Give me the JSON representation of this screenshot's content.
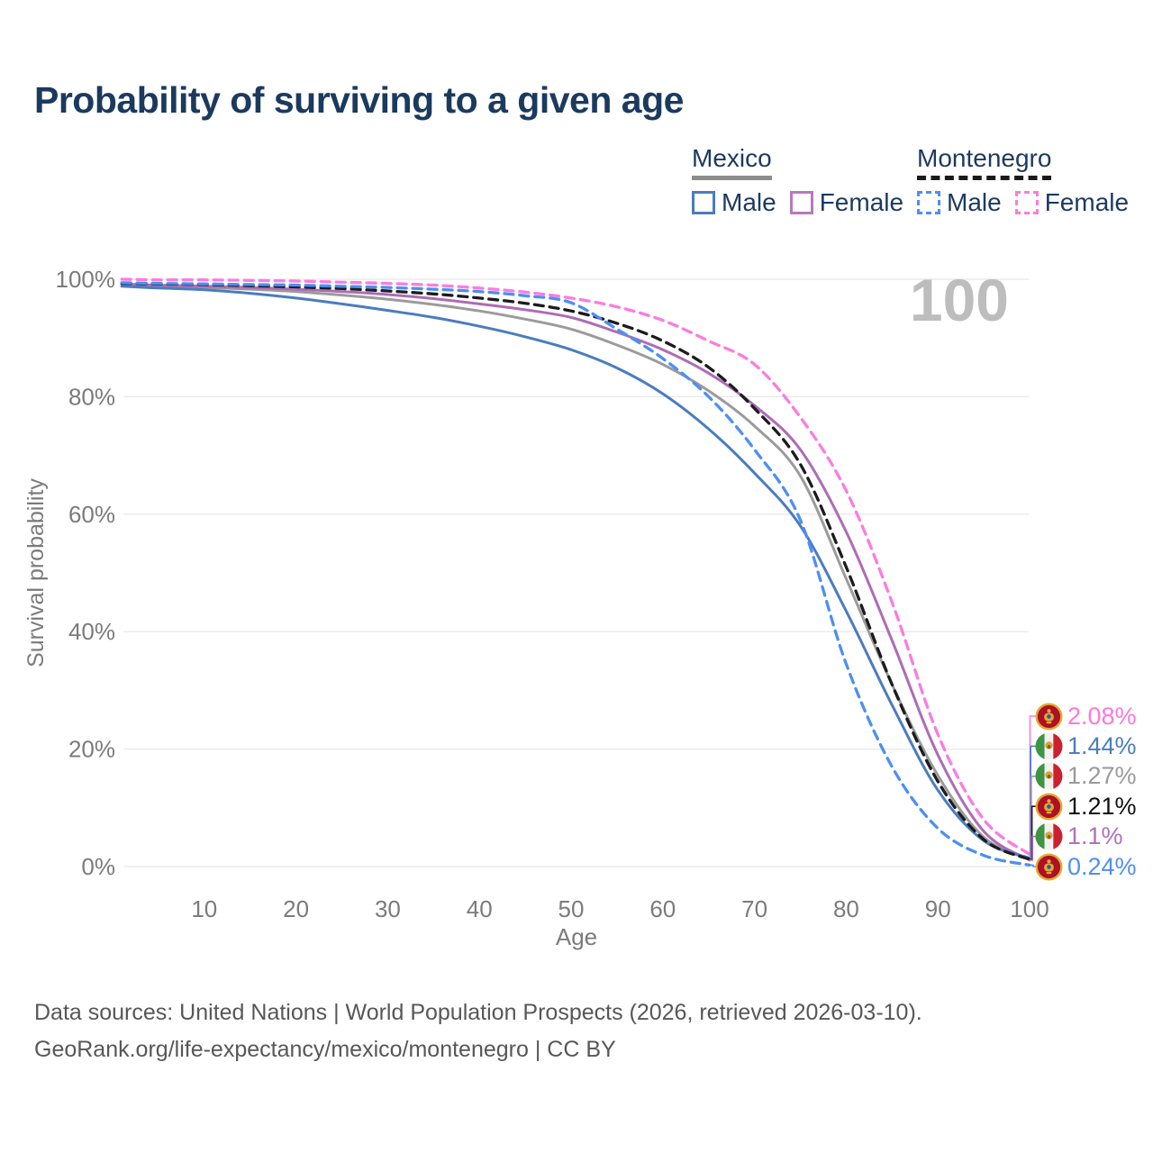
{
  "title": "Probability of surviving to a given age",
  "watermark": "100",
  "legend": {
    "groups": [
      {
        "label": "Mexico",
        "line_style": "solid",
        "underline_color": "#8c8c8c",
        "items": [
          {
            "label": "Male",
            "color": "#4a7cc0"
          },
          {
            "label": "Female",
            "color": "#b879bc"
          }
        ]
      },
      {
        "label": "Montenegro",
        "line_style": "dashed",
        "underline_color": "#1a1a1a",
        "items": [
          {
            "label": "Male",
            "color": "#4d8ff2"
          },
          {
            "label": "Female",
            "color": "#fb7ce0"
          }
        ]
      }
    ]
  },
  "chart_data": {
    "type": "line",
    "title": "Probability of surviving to a given age",
    "xlabel": "Age",
    "ylabel": "Survival probability",
    "xlim": [
      1,
      100
    ],
    "ylim": [
      0,
      100
    ],
    "xticks": [
      10,
      20,
      30,
      40,
      50,
      60,
      70,
      80,
      90,
      100
    ],
    "yticks": [
      0,
      20,
      40,
      60,
      80,
      100
    ],
    "ytick_suffix": "%",
    "grid": "horizontal-only",
    "gridline_color": "#e8e8e8",
    "tick_color": "#7b7b7b",
    "legend_position": "top-right",
    "hovered_age": "100",
    "ages": [
      1,
      5,
      10,
      15,
      20,
      25,
      30,
      35,
      40,
      45,
      50,
      55,
      60,
      65,
      70,
      75,
      80,
      85,
      90,
      95,
      100
    ],
    "series": [
      {
        "name": "Mexico",
        "country": "Mexico",
        "sex": "Both sexes",
        "flag": "mx",
        "color": "#9b9b9b",
        "dash": "solid",
        "end_label": "1.27%",
        "label_color": "#9a9a9a",
        "values": [
          99.0,
          98.8,
          98.6,
          98.3,
          97.9,
          97.3,
          96.6,
          95.7,
          94.6,
          93.2,
          91.5,
          88.8,
          85.5,
          81.0,
          75.0,
          66.5,
          49.0,
          31.0,
          15.5,
          5.0,
          1.27
        ]
      },
      {
        "name": "Mexico Female",
        "country": "Mexico",
        "sex": "Female",
        "flag": "mx",
        "color": "#ad6cb5",
        "dash": "solid",
        "end_label": "1.1%",
        "label_color": "#b070b8",
        "values": [
          99.2,
          99.0,
          98.8,
          98.6,
          98.3,
          97.9,
          97.4,
          96.7,
          95.8,
          94.8,
          93.5,
          91.0,
          88.0,
          84.0,
          78.5,
          71.0,
          57.0,
          38.5,
          19.0,
          6.0,
          1.1
        ]
      },
      {
        "name": "Mexico Male",
        "country": "Mexico",
        "sex": "Male",
        "flag": "mx",
        "color": "#4a7cc0",
        "dash": "solid",
        "end_label": "1.44%",
        "label_color": "#4a7ebb",
        "values": [
          98.8,
          98.5,
          98.2,
          97.6,
          96.8,
          95.8,
          94.7,
          93.5,
          92.0,
          90.2,
          88.0,
          84.9,
          80.5,
          74.5,
          67.0,
          58.0,
          43.5,
          27.5,
          13.0,
          4.4,
          1.44
        ]
      },
      {
        "name": "Montenegro",
        "country": "Montenegro",
        "sex": "Both sexes",
        "flag": "me",
        "color": "#1c1c1c",
        "dash": "dashed",
        "end_label": "1.21%",
        "label_color": "#111111",
        "values": [
          99.3,
          99.2,
          99.1,
          98.9,
          98.7,
          98.4,
          98.0,
          97.5,
          96.8,
          95.9,
          94.6,
          92.5,
          89.5,
          85.0,
          78.0,
          68.5,
          51.0,
          31.0,
          14.5,
          4.6,
          1.21
        ]
      },
      {
        "name": "Montenegro Male",
        "country": "Montenegro",
        "sex": "Male",
        "flag": "me",
        "color": "#4d8ff2",
        "dash": "dashed",
        "end_label": "0.24%",
        "label_color": "#4d8ff2",
        "values": [
          99.4,
          99.3,
          99.2,
          99.1,
          99.0,
          98.8,
          98.6,
          98.3,
          97.9,
          97.2,
          96.0,
          91.5,
          86.5,
          80.0,
          71.0,
          59.0,
          34.5,
          17.0,
          6.5,
          1.9,
          0.24
        ]
      },
      {
        "name": "Montenegro Female",
        "country": "Montenegro",
        "sex": "Female",
        "flag": "me",
        "color": "#fb7ce0",
        "dash": "dashed",
        "end_label": "2.08%",
        "label_color": "#ff77dd",
        "values": [
          100,
          99.9,
          99.9,
          99.8,
          99.7,
          99.5,
          99.3,
          99.0,
          98.5,
          97.8,
          96.8,
          95.3,
          93.0,
          89.5,
          85.5,
          76.5,
          64.0,
          45.0,
          22.5,
          8.0,
          2.08
        ]
      }
    ]
  },
  "footer": {
    "line1": "Data sources: United Nations | World Population Prospects (2026, retrieved 2026-03-10).",
    "line2": "GeoRank.org/life-expectancy/mexico/montenegro | CC BY"
  }
}
